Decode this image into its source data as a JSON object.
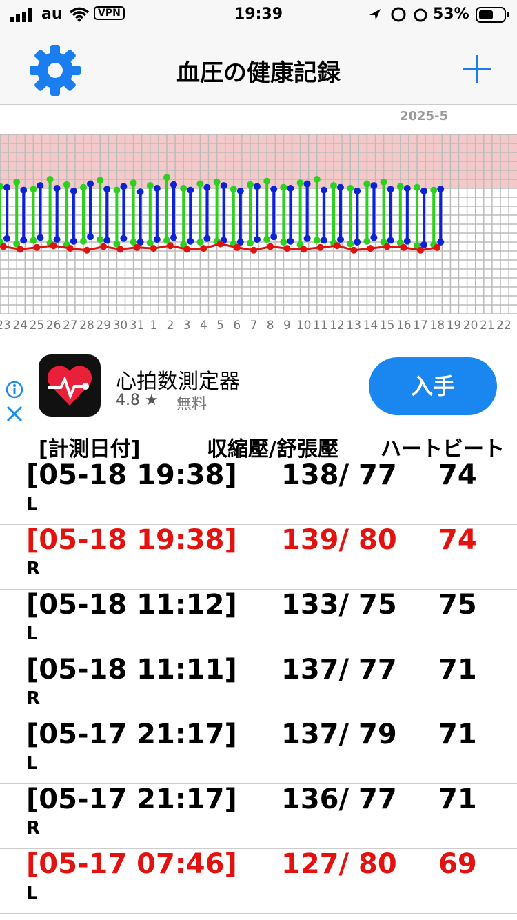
{
  "status_bar": {
    "carrier": "au",
    "vpn": "VPN",
    "time": "19:39",
    "battery": "53%"
  },
  "header": {
    "title": "血圧の健康記録"
  },
  "chart": {
    "type": "range",
    "month": "2025-5",
    "days": [
      "23",
      "24",
      "25",
      "26",
      "27",
      "28",
      "29",
      "30",
      "31",
      "1",
      "2",
      "3",
      "4",
      "5",
      "6",
      "7",
      "8",
      "9",
      "10",
      "11",
      "12",
      "13",
      "14",
      "15",
      "16",
      "17",
      "18",
      "19",
      "20",
      "21",
      "22"
    ],
    "ylim": [
      0,
      200
    ],
    "alert_from": 140,
    "alert_color": "#f3c9c9",
    "left": {
      "color": "#2bd11c",
      "systolic": [
        142,
        147,
        139,
        150,
        144,
        141,
        149,
        138,
        146,
        143,
        152,
        140,
        145,
        147,
        139,
        144,
        148,
        141,
        146,
        150,
        143,
        140,
        145,
        147,
        142,
        141,
        138,
        null,
        null,
        null,
        null
      ],
      "diastolic": [
        80,
        78,
        82,
        79,
        77,
        81,
        83,
        78,
        80,
        79,
        82,
        77,
        80,
        81,
        78,
        79,
        83,
        80,
        77,
        82,
        79,
        78,
        81,
        80,
        79,
        76,
        77,
        null,
        null,
        null,
        null
      ]
    },
    "right": {
      "color": "#0b22d6",
      "systolic": [
        141,
        138,
        143,
        140,
        137,
        145,
        139,
        142,
        136,
        140,
        144,
        138,
        141,
        143,
        137,
        142,
        139,
        140,
        145,
        138,
        141,
        137,
        143,
        139,
        140,
        137,
        139,
        null,
        null,
        null,
        null
      ],
      "diastolic": [
        84,
        82,
        85,
        83,
        81,
        86,
        82,
        84,
        80,
        83,
        85,
        81,
        84,
        82,
        80,
        83,
        86,
        81,
        84,
        82,
        83,
        80,
        85,
        82,
        81,
        77,
        80,
        null,
        null,
        null,
        null
      ]
    },
    "pulse": {
      "color": "#e3120f",
      "values": [
        75,
        72,
        74,
        76,
        73,
        71,
        75,
        72,
        74,
        73,
        76,
        72,
        73,
        78,
        74,
        71,
        75,
        73,
        72,
        74,
        76,
        71,
        73,
        75,
        74,
        71,
        74,
        null,
        null,
        null,
        null
      ]
    }
  },
  "ad": {
    "app_name": "心拍数測定器",
    "rating": "4.8 ★",
    "price": "無料",
    "button": "入手"
  },
  "table": {
    "headers": [
      "[計測日付]",
      "収縮壓/舒張壓",
      "ハートビート"
    ],
    "rows": [
      {
        "date": "[05-18 19:38]",
        "bp": "138/ 77",
        "hr": 74,
        "arm": "L",
        "alert": false
      },
      {
        "date": "[05-18 19:38]",
        "bp": "139/ 80",
        "hr": 74,
        "arm": "R",
        "alert": true
      },
      {
        "date": "[05-18 11:12]",
        "bp": "133/ 75",
        "hr": 75,
        "arm": "L",
        "alert": false
      },
      {
        "date": "[05-18 11:11]",
        "bp": "137/ 77",
        "hr": 71,
        "arm": "R",
        "alert": false
      },
      {
        "date": "[05-17 21:17]",
        "bp": "137/ 79",
        "hr": 71,
        "arm": "L",
        "alert": false
      },
      {
        "date": "[05-17 21:17]",
        "bp": "136/ 77",
        "hr": 71,
        "arm": "R",
        "alert": false
      },
      {
        "date": "[05-17 07:46]",
        "bp": "127/ 80",
        "hr": 69,
        "arm": "L",
        "alert": true
      }
    ]
  }
}
